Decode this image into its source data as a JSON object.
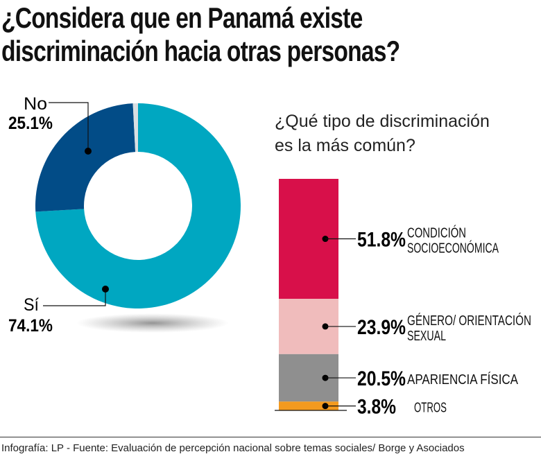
{
  "chart_data": [
    {
      "type": "pie",
      "title": "¿Considera que en Panamá existe discriminación hacia otras personas?",
      "title_lines": [
        "¿Considera que en Panamá existe",
        "discriminación hacia otras personas?"
      ],
      "donut": true,
      "slices": [
        {
          "label": "Sí",
          "value": 74.1,
          "value_label": "74.1%",
          "color": "#00a7c1"
        },
        {
          "label": "No",
          "value": 25.1,
          "value_label": "25.1%",
          "color": "#024c87"
        },
        {
          "label": "",
          "value": 0.8,
          "color": "#d9dfe2"
        }
      ]
    },
    {
      "type": "bar",
      "stacked": true,
      "title": "¿Qué tipo de discriminación es la más común?",
      "title_lines": [
        "¿Qué tipo de discriminación",
        " es la más común?"
      ],
      "segments": [
        {
          "label_lines": [
            "CONDICIÓN",
            "SOCIOECONÓMICA"
          ],
          "value": 51.8,
          "value_label": "51.8%",
          "color": "#d8104a"
        },
        {
          "label_lines": [
            "GÉNERO/ ORIENTACIÓN",
            "SEXUAL"
          ],
          "value": 23.9,
          "value_label": "23.9%",
          "color": "#f0bcbc"
        },
        {
          "label_lines": [
            "APARIENCIA FÍSICA"
          ],
          "value": 20.5,
          "value_label": "20.5%",
          "color": "#8f8f8f"
        },
        {
          "label_lines": [
            "OTROS"
          ],
          "value": 3.8,
          "value_label": "3.8%",
          "color": "#f39a1f"
        }
      ]
    }
  ],
  "footer": "Infografía: LP - Fuente: Evaluación de percepción nacional sobre temas sociales/ Borge y Asociados"
}
